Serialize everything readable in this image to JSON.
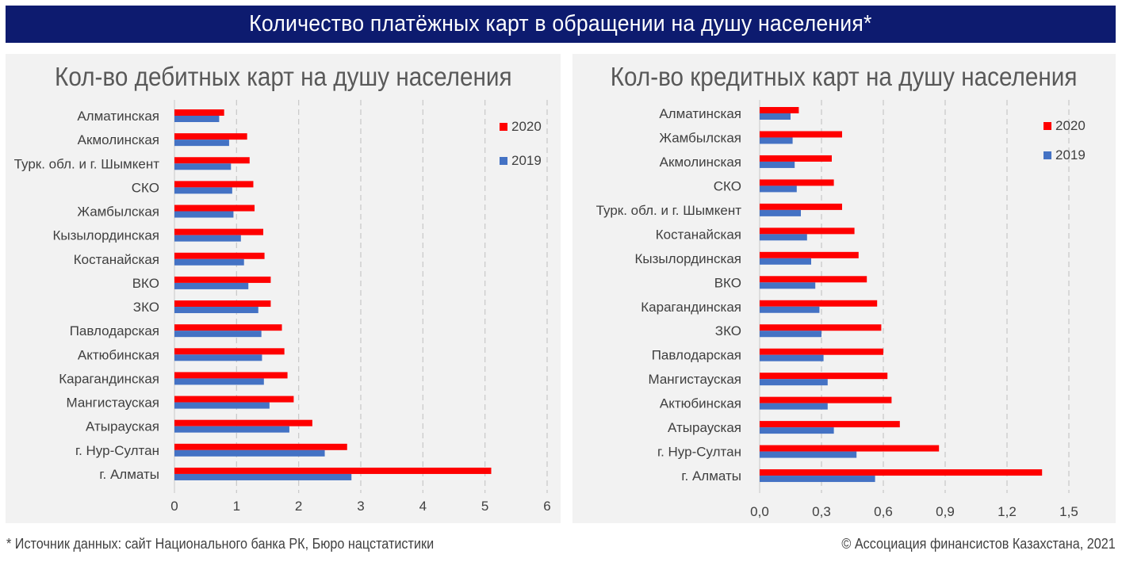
{
  "header": {
    "title": "Количество платёжных карт в обращении на душу населения*"
  },
  "footer": {
    "source": "* Источник данных: сайт Национального банка РК, Бюро нацстатистики",
    "copyright": "© Ассоциация финансистов Казахстана, 2021"
  },
  "colors": {
    "series_2020": "#ff0000",
    "series_2019": "#4472c4",
    "banner": "#0d1b6f"
  },
  "chart_data": [
    {
      "type": "bar",
      "orientation": "horizontal",
      "title": "Кол-во дебитных карт на душу населения",
      "categories": [
        "Алматинская",
        "Акмолинская",
        "Турк. обл. и г. Шымкент",
        "СКО",
        "Жамбылская",
        "Кызылординская",
        "Костанайская",
        "ВКО",
        "ЗКО",
        "Павлодарская",
        "Актюбинская",
        "Карагандинская",
        "Мангистауская",
        "Атырауская",
        "г. Нур-Султан",
        "г. Алматы"
      ],
      "series": [
        {
          "name": "2020",
          "values": [
            0.8,
            1.17,
            1.21,
            1.27,
            1.29,
            1.43,
            1.45,
            1.55,
            1.55,
            1.73,
            1.77,
            1.82,
            1.92,
            2.22,
            2.78,
            5.1
          ]
        },
        {
          "name": "2019",
          "values": [
            0.72,
            0.88,
            0.91,
            0.93,
            0.95,
            1.07,
            1.12,
            1.19,
            1.35,
            1.4,
            1.41,
            1.44,
            1.53,
            1.85,
            2.42,
            2.85
          ]
        }
      ],
      "xlim": [
        0,
        6
      ],
      "ticks": [
        "0",
        "1",
        "2",
        "3",
        "4",
        "5",
        "6"
      ],
      "grid": "vertical dashed",
      "legend": "top-right"
    },
    {
      "type": "bar",
      "orientation": "horizontal",
      "title": "Кол-во кредитных карт на душу населения",
      "categories": [
        "Алматинская",
        "Жамбылская",
        "Акмолинская",
        "СКО",
        "Турк. обл. и г. Шымкент",
        "Костанайская",
        "Кызылординская",
        "ВКО",
        "Карагандинская",
        "ЗКО",
        "Павлодарская",
        "Мангистауская",
        "Актюбинская",
        "Атырауская",
        "г. Нур-Султан",
        "г. Алматы"
      ],
      "series": [
        {
          "name": "2020",
          "values": [
            0.19,
            0.4,
            0.35,
            0.36,
            0.4,
            0.46,
            0.48,
            0.52,
            0.57,
            0.59,
            0.6,
            0.62,
            0.64,
            0.68,
            0.87,
            1.37
          ]
        },
        {
          "name": "2019",
          "values": [
            0.15,
            0.16,
            0.17,
            0.18,
            0.2,
            0.23,
            0.25,
            0.27,
            0.29,
            0.3,
            0.31,
            0.33,
            0.33,
            0.36,
            0.47,
            0.56
          ]
        }
      ],
      "xlim": [
        0,
        1.5
      ],
      "ticks": [
        "0,0",
        "0,3",
        "0,6",
        "0,9",
        "1,2",
        "1,5"
      ],
      "grid": "vertical dashed",
      "legend": "top-right"
    }
  ]
}
